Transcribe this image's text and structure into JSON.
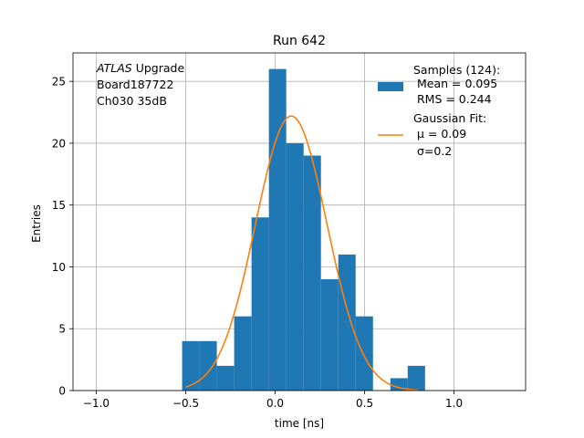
{
  "chart_data": {
    "type": "bar",
    "title": "Run 642",
    "xlabel": "time [ns]",
    "ylabel": "Entries",
    "xlim": [
      -1.13,
      1.4
    ],
    "ylim": [
      0,
      27.3
    ],
    "xticks": [
      -1.0,
      -0.5,
      0.0,
      0.5,
      1.0
    ],
    "xtick_labels": [
      "−1.0",
      "−0.5",
      "0.0",
      "0.5",
      "1.0"
    ],
    "yticks": [
      0,
      5,
      10,
      15,
      20,
      25
    ],
    "ytick_labels": [
      "0",
      "5",
      "10",
      "15",
      "20",
      "25"
    ],
    "grid": true,
    "annotation_lines": [
      {
        "italic": "ATLAS",
        "rest": " Upgrade"
      },
      {
        "italic": "",
        "rest": " Board187722"
      },
      {
        "italic": "",
        "rest": " Ch030 35dB"
      }
    ],
    "histogram": {
      "name": "Samples (124):",
      "color": "#1f77b4",
      "bin_edges": [
        -0.52,
        -0.423,
        -0.326,
        -0.229,
        -0.132,
        -0.035,
        0.062,
        0.159,
        0.256,
        0.353,
        0.45,
        0.547,
        0.644,
        0.741,
        0.838
      ],
      "counts": [
        4,
        4,
        2,
        6,
        14,
        26,
        20,
        19,
        9,
        11,
        6,
        0,
        1,
        2
      ],
      "stats": [
        " Mean = 0.095",
        " RMS = 0.244"
      ]
    },
    "fit": {
      "name": "Gaussian Fit:",
      "color": "#ff7f0e",
      "mu": 0.09,
      "sigma": 0.2,
      "amplitude": 22.2,
      "x_range": [
        -0.5,
        0.8
      ],
      "params": [
        " μ = 0.09",
        " σ=0.2"
      ]
    },
    "legend_position": "upper-right"
  }
}
